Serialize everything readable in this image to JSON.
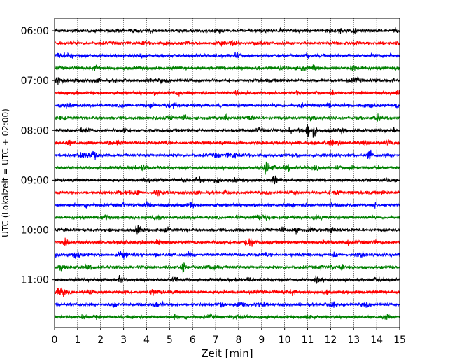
{
  "chart_data": {
    "type": "line",
    "subtype": "helicorder",
    "xlabel": "Zeit  [min]",
    "ylabel": "UTC (Lokalzeit = UTC + 02:00)",
    "xlim": [
      0,
      15
    ],
    "x_ticks": [
      "0",
      "1",
      "2",
      "3",
      "4",
      "5",
      "6",
      "7",
      "8",
      "9",
      "10",
      "11",
      "12",
      "13",
      "14",
      "15"
    ],
    "y_time_range": [
      "05:45",
      "11:45"
    ],
    "row_interval_minutes": 15,
    "y_ticks": [
      "06:00",
      "07:00",
      "08:00",
      "09:00",
      "10:00",
      "11:00"
    ],
    "grid": "vertical dotted lines at each minute",
    "color_cycle": [
      "#000000",
      "#ff0000",
      "#0000ff",
      "#008000"
    ],
    "traces": [
      {
        "start": "06:00",
        "color": "#000000"
      },
      {
        "start": "06:15",
        "color": "#ff0000"
      },
      {
        "start": "06:30",
        "color": "#0000ff"
      },
      {
        "start": "06:45",
        "color": "#008000"
      },
      {
        "start": "07:00",
        "color": "#000000"
      },
      {
        "start": "07:15",
        "color": "#ff0000"
      },
      {
        "start": "07:30",
        "color": "#0000ff"
      },
      {
        "start": "07:45",
        "color": "#008000"
      },
      {
        "start": "08:00",
        "color": "#000000",
        "events_min": [
          11.0,
          11.3
        ]
      },
      {
        "start": "08:15",
        "color": "#ff0000"
      },
      {
        "start": "08:30",
        "color": "#0000ff",
        "events_min": [
          13.7
        ]
      },
      {
        "start": "08:45",
        "color": "#008000",
        "events_min": [
          9.2
        ]
      },
      {
        "start": "09:00",
        "color": "#000000"
      },
      {
        "start": "09:15",
        "color": "#ff0000"
      },
      {
        "start": "09:30",
        "color": "#0000ff"
      },
      {
        "start": "09:45",
        "color": "#008000"
      },
      {
        "start": "10:00",
        "color": "#000000"
      },
      {
        "start": "10:15",
        "color": "#ff0000"
      },
      {
        "start": "10:30",
        "color": "#0000ff"
      },
      {
        "start": "10:45",
        "color": "#008000",
        "events_min": [
          5.6
        ]
      },
      {
        "start": "11:00",
        "color": "#000000"
      },
      {
        "start": "11:15",
        "color": "#ff0000"
      },
      {
        "start": "11:30",
        "color": "#0000ff"
      },
      {
        "start": "11:45",
        "color": "#008000"
      }
    ]
  }
}
